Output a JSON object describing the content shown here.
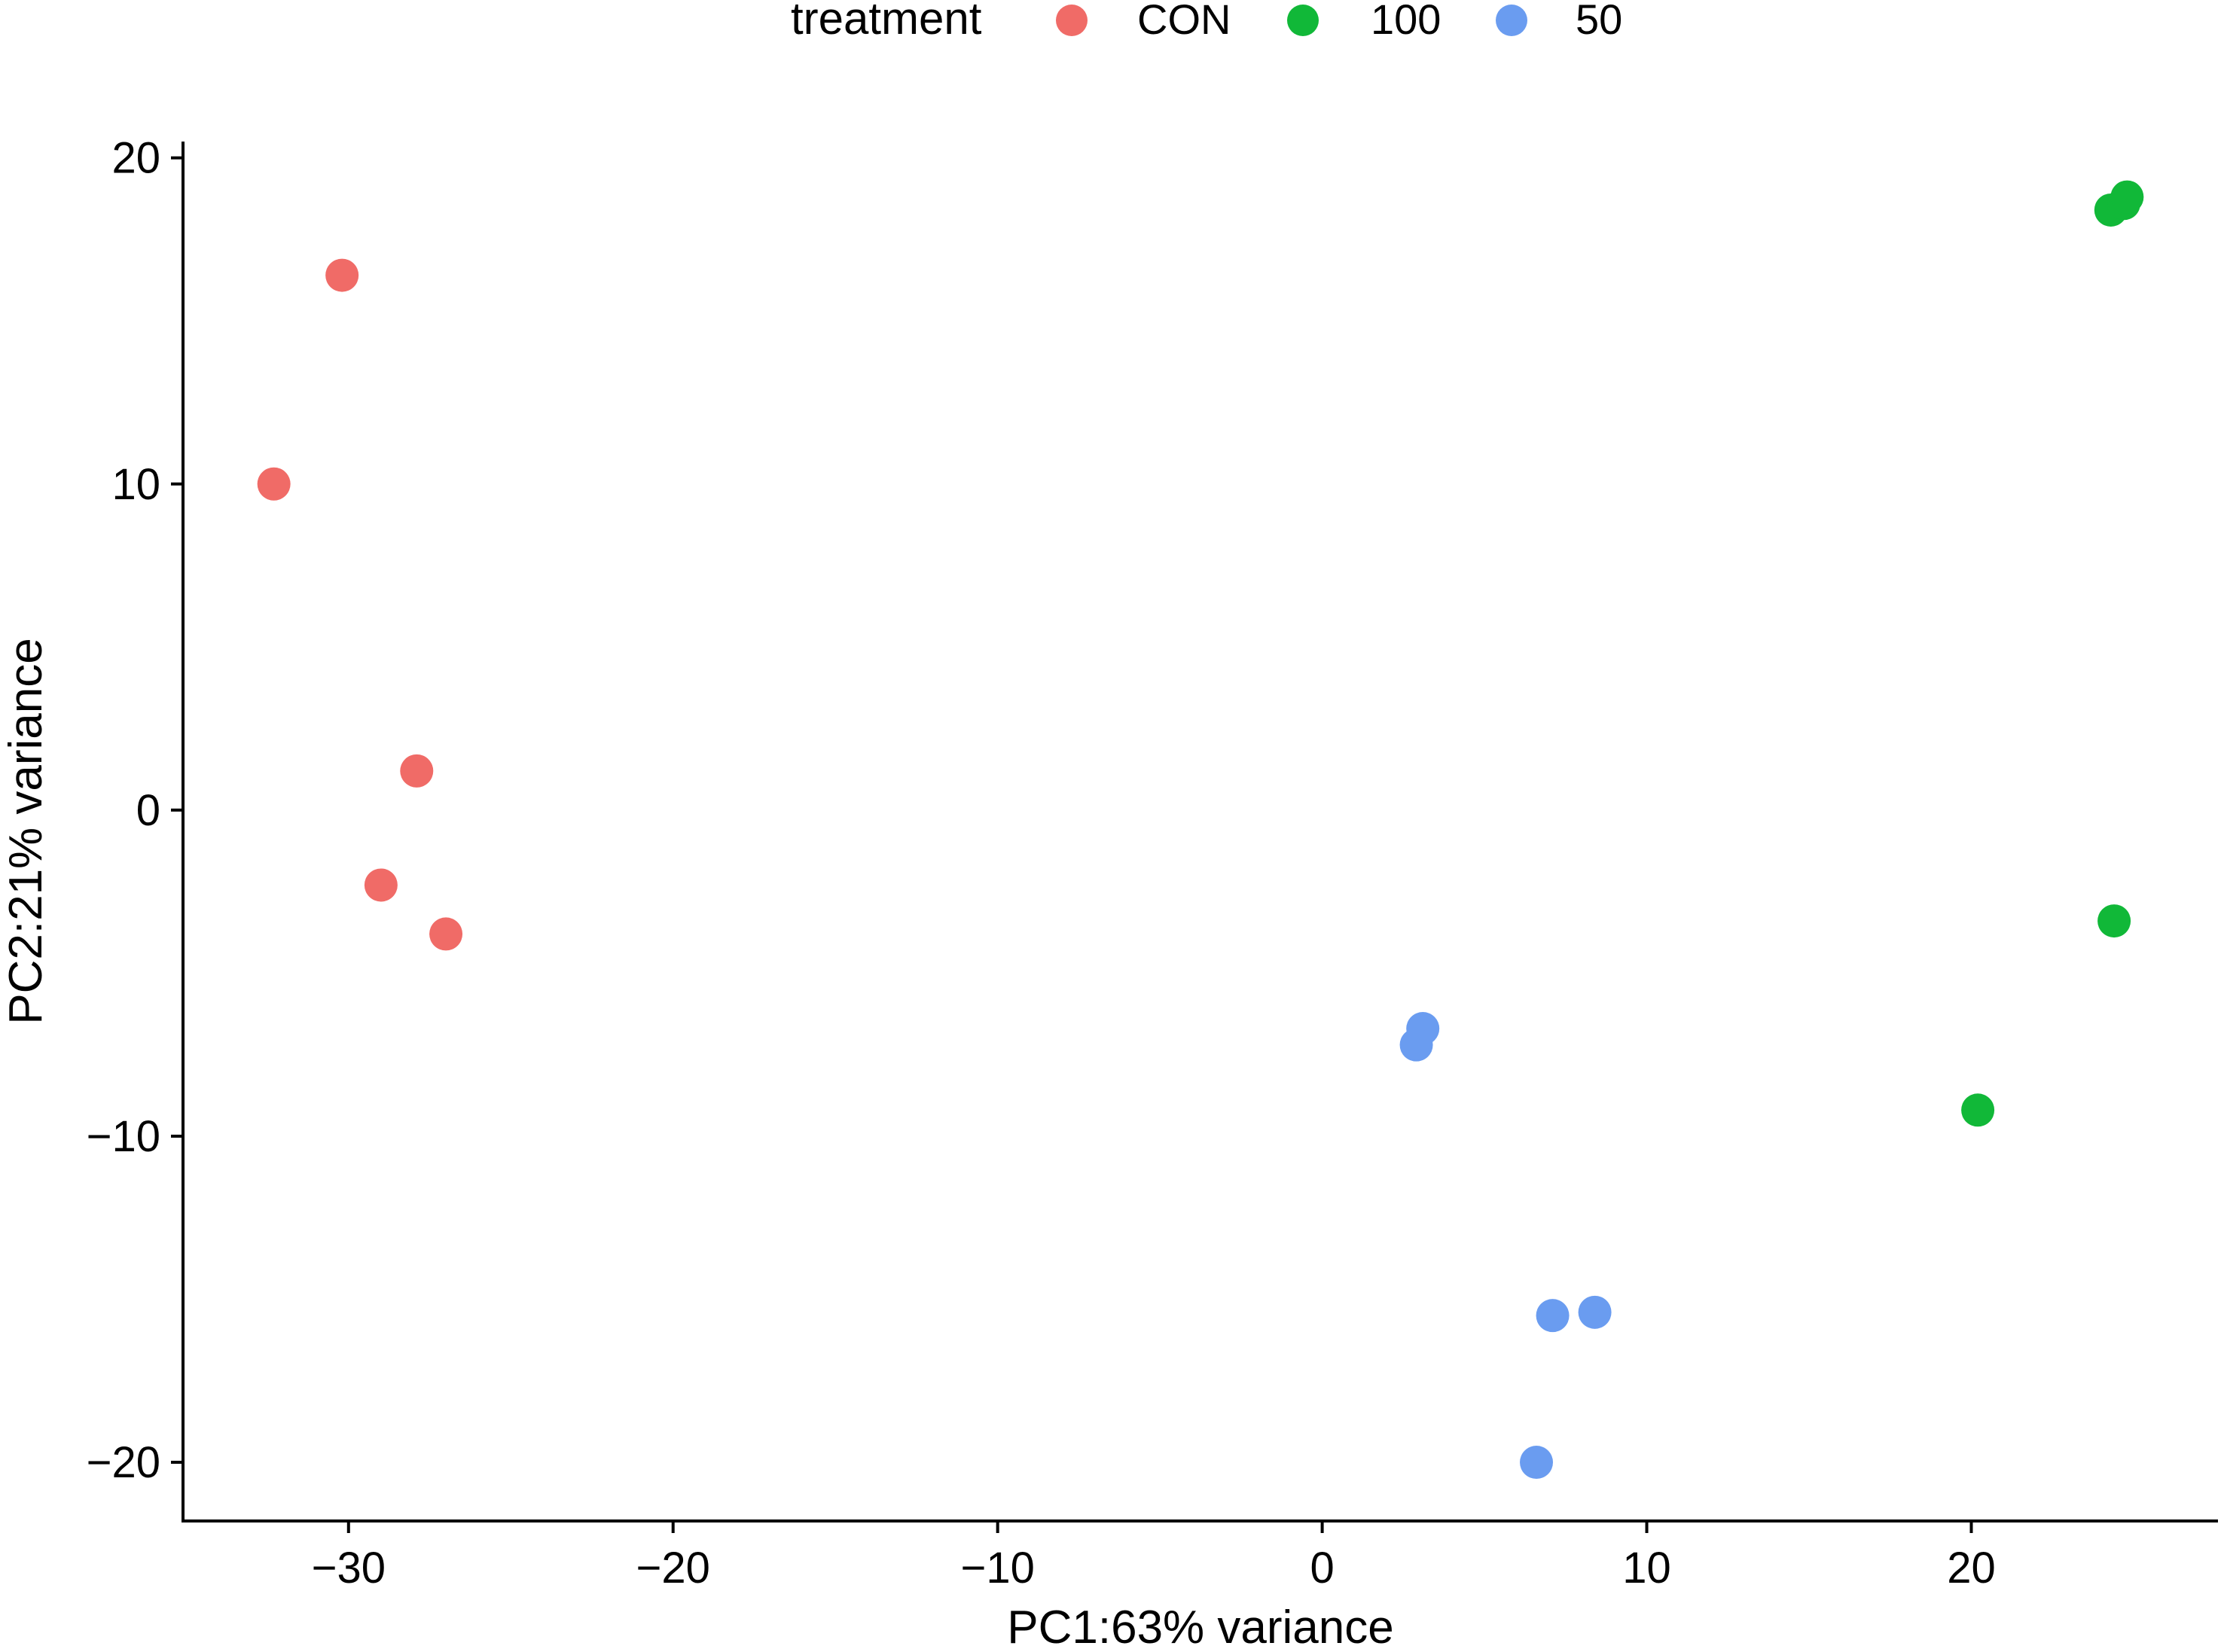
{
  "chart_data": {
    "type": "scatter",
    "title": "",
    "xlabel": "PC1:63% variance",
    "ylabel": "PC2:21% variance",
    "xlim": [
      -35.1,
      27.6
    ],
    "ylim": [
      -21.8,
      20.5
    ],
    "x_ticks": [
      -30,
      -20,
      -10,
      0,
      10,
      20
    ],
    "y_ticks": [
      -20,
      -10,
      0,
      10,
      20
    ],
    "x_tick_labels": [
      "−30",
      "−20",
      "−10",
      "0",
      "10",
      "20"
    ],
    "y_tick_labels": [
      "−20",
      "−10",
      "0",
      "10",
      "20"
    ],
    "legend": {
      "title": "treatment",
      "position": "top",
      "entries": [
        {
          "label": "CON",
          "color": "#F06B67"
        },
        {
          "label": "100",
          "color": "#11B838"
        },
        {
          "label": "50",
          "color": "#6A9CF0"
        }
      ]
    },
    "series": [
      {
        "name": "CON",
        "color": "#F06B67",
        "points": [
          {
            "x": -30.2,
            "y": 16.4
          },
          {
            "x": -32.3,
            "y": 10.0
          },
          {
            "x": -27.9,
            "y": 1.2
          },
          {
            "x": -29.0,
            "y": -2.3
          },
          {
            "x": -27.0,
            "y": -3.8
          }
        ]
      },
      {
        "name": "100",
        "color": "#11B838",
        "points": [
          {
            "x": 24.3,
            "y": 18.4
          },
          {
            "x": 24.7,
            "y": 18.6
          },
          {
            "x": 24.8,
            "y": 18.8
          },
          {
            "x": 24.4,
            "y": -3.4
          },
          {
            "x": 20.2,
            "y": -9.2
          }
        ]
      },
      {
        "name": "50",
        "color": "#6A9CF0",
        "points": [
          {
            "x": 3.1,
            "y": -6.7
          },
          {
            "x": 2.9,
            "y": -7.2
          },
          {
            "x": 7.1,
            "y": -15.5
          },
          {
            "x": 8.4,
            "y": -15.4
          },
          {
            "x": 6.6,
            "y": -20.0
          }
        ]
      }
    ]
  }
}
